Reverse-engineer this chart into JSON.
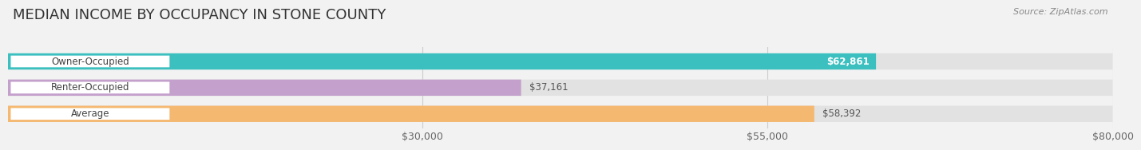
{
  "title": "MEDIAN INCOME BY OCCUPANCY IN STONE COUNTY",
  "source": "Source: ZipAtlas.com",
  "categories": [
    "Owner-Occupied",
    "Renter-Occupied",
    "Average"
  ],
  "values": [
    62861,
    37161,
    58392
  ],
  "bar_colors": [
    "#3bbfbf",
    "#c4a0cc",
    "#f5b870"
  ],
  "bar_labels": [
    "$62,861",
    "$37,161",
    "$58,392"
  ],
  "label_text_colors": [
    "#ffffff",
    "#555555",
    "#555555"
  ],
  "xlim_start": 0,
  "xlim_end": 80000,
  "xticks": [
    30000,
    55000,
    80000
  ],
  "xticklabels": [
    "$30,000",
    "$55,000",
    "$80,000"
  ],
  "background_color": "#f2f2f2",
  "bar_bg_color": "#e2e2e2",
  "title_fontsize": 13,
  "label_fontsize": 8.5,
  "tick_fontsize": 9,
  "value_fontsize": 8.5
}
